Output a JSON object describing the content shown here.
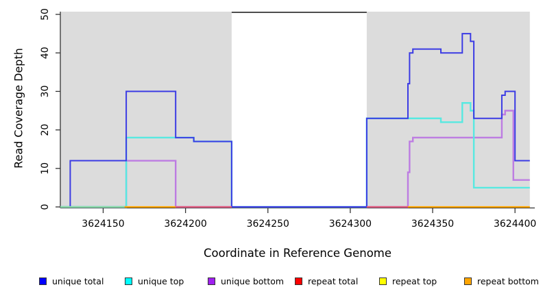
{
  "figure": {
    "background": "#ffffff",
    "band_color": "#dcdcdc",
    "axis_color": "#333333"
  },
  "chart_data": {
    "type": "line",
    "line_style": "step-post",
    "title": "",
    "xlabel": "Coordinate in Reference Genome",
    "ylabel": "Read Coverage Depth",
    "xlim": [
      3624124,
      3624412
    ],
    "ylim": [
      0,
      50
    ],
    "xticks": [
      3624150,
      3624200,
      3624250,
      3624300,
      3624350,
      3624400
    ],
    "yticks": [
      0,
      10,
      20,
      30,
      40,
      50
    ],
    "grid": false,
    "shaded_regions": {
      "color": "#dcdcdc",
      "ranges": [
        [
          3624124,
          3624228
        ],
        [
          3624310,
          3624409
        ]
      ]
    },
    "gap_top_line": {
      "from": 3624228,
      "to": 3624310,
      "color": "#4d4d4d"
    },
    "series": [
      {
        "name": "unique bottom",
        "color": "#bd7ce2",
        "width": 2.4,
        "start_x": 3624124,
        "end_x": 3624409,
        "steps": [
          [
            3624164,
            12
          ],
          [
            3624194,
            0
          ],
          [
            3624335,
            9
          ],
          [
            3624336,
            17
          ],
          [
            3624338,
            18
          ],
          [
            3624392,
            24
          ],
          [
            3624394,
            25
          ],
          [
            3624399,
            7
          ]
        ]
      },
      {
        "name": "unique top",
        "color": "#57e9e1",
        "width": 2.4,
        "start_x": 3624124,
        "end_x": 3624409,
        "steps": [
          [
            3624164,
            18
          ],
          [
            3624205,
            17
          ],
          [
            3624228,
            0
          ],
          [
            3624310,
            23
          ],
          [
            3624355,
            22
          ],
          [
            3624368,
            27
          ],
          [
            3624373,
            25
          ],
          [
            3624375,
            5
          ]
        ]
      },
      {
        "name": "unique total",
        "color": "#3b3be4",
        "width": 2,
        "start_x": 3624124,
        "end_x": 3624409,
        "steps": [
          [
            3624130,
            12
          ],
          [
            3624164,
            30
          ],
          [
            3624194,
            18
          ],
          [
            3624205,
            17
          ],
          [
            3624228,
            0
          ],
          [
            3624310,
            23
          ],
          [
            3624335,
            32
          ],
          [
            3624336,
            40
          ],
          [
            3624338,
            41
          ],
          [
            3624355,
            40
          ],
          [
            3624368,
            45
          ],
          [
            3624373,
            43
          ],
          [
            3624375,
            23
          ],
          [
            3624392,
            29
          ],
          [
            3624394,
            30
          ],
          [
            3624400,
            12
          ]
        ]
      },
      {
        "name": "repeat total",
        "color": "#e25b7d",
        "flat_value": 0,
        "segments": [
          [
            3624194,
            3624228
          ],
          [
            3624310,
            3624335
          ]
        ]
      },
      {
        "name": "repeat top",
        "color": "#ffff00",
        "flat_value": 0,
        "segments": []
      },
      {
        "name": "repeat bottom",
        "color": "#ffa500",
        "flat_value": 0,
        "segments": [
          [
            3624163,
            3624194
          ],
          [
            3624335,
            3624409
          ]
        ]
      }
    ],
    "baseline_overplot": [
      {
        "from": 3624124,
        "to": 3624163,
        "color": "#8bdca6"
      },
      {
        "from": 3624163,
        "to": 3624194,
        "color": "#ffa500"
      },
      {
        "from": 3624194,
        "to": 3624228,
        "color": "#e25b7d"
      },
      {
        "from": 3624310,
        "to": 3624335,
        "color": "#e25b7d"
      },
      {
        "from": 3624335,
        "to": 3624409,
        "color": "#ffa500"
      }
    ],
    "legend": {
      "position": "bottom",
      "items": [
        {
          "label": "unique total",
          "color": "#0000ff"
        },
        {
          "label": "unique top",
          "color": "#00ffff"
        },
        {
          "label": "unique bottom",
          "color": "#a020f0"
        },
        {
          "label": "repeat total",
          "color": "#ff0000"
        },
        {
          "label": "repeat top",
          "color": "#ffff00"
        },
        {
          "label": "repeat bottom",
          "color": "#ffa500"
        }
      ]
    }
  }
}
